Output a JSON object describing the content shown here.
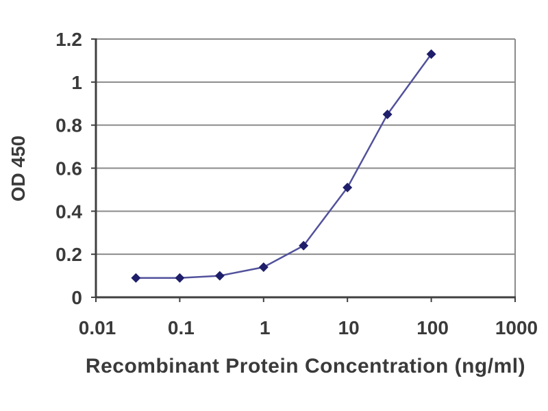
{
  "chart_data": {
    "type": "line",
    "title": "",
    "xlabel": "Recombinant Protein Concentration (ng/ml)",
    "ylabel": "OD 450",
    "x_scale": "log",
    "y_scale": "linear",
    "xlim": [
      0.01,
      1000
    ],
    "ylim": [
      0,
      1.2
    ],
    "grid": true,
    "legend": "none",
    "x_tick_labels": [
      "0.01",
      "0.1",
      "1",
      "10",
      "100",
      "1000"
    ],
    "x_ticks": [
      0.01,
      0.1,
      1,
      10,
      100,
      1000
    ],
    "y_tick_labels": [
      "0",
      "0.2",
      "0.4",
      "0.6",
      "0.8",
      "1",
      "1.2"
    ],
    "y_ticks": [
      0,
      0.2,
      0.4,
      0.6,
      0.8,
      1,
      1.2
    ],
    "series": [
      {
        "marker": "diamond",
        "x": [
          0.03,
          0.1,
          0.3,
          1,
          3,
          10,
          30,
          100
        ],
        "y": [
          0.09,
          0.09,
          0.1,
          0.14,
          0.24,
          0.51,
          0.85,
          1.13
        ]
      }
    ],
    "colors": {
      "line": "#51519c",
      "marker": "#1e1e6a",
      "gridline": "#8a8a8a",
      "axis": "#3f3f3f",
      "text": "#3a3a3a",
      "background": "#ffffff"
    }
  }
}
